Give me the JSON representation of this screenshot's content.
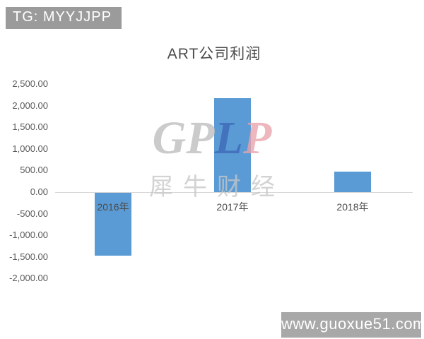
{
  "overlays": {
    "top_left_badge": "TG: MYYJJPP",
    "bottom_right_badge": "www.guoxue51.com"
  },
  "watermark": {
    "logo_letters": [
      {
        "char": "G",
        "color": "#bdbdbd"
      },
      {
        "char": "P",
        "color": "#bdbdbd"
      },
      {
        "char": "L",
        "color": "#3e68b8"
      },
      {
        "char": "P",
        "color": "#e9a3ab"
      }
    ],
    "subtitle": "犀牛财经"
  },
  "chart_data": {
    "type": "bar",
    "title": "ART公司利润",
    "categories": [
      "2016年",
      "2017年",
      "2018年"
    ],
    "values": [
      -1450,
      2180,
      470
    ],
    "xlabel": "",
    "ylabel": "",
    "ylim": [
      -2000,
      2500
    ],
    "ytick_step": 500,
    "ytick_labels": [
      "2,500.00",
      "2,000.00",
      "1,500.00",
      "1,000.00",
      "500.00",
      "0.00",
      "-500.00",
      "-1,000.00",
      "-1,500.00",
      "-2,000.00"
    ],
    "bar_color": "#5b9bd5",
    "grid": false,
    "legend": null
  },
  "colors": {
    "background": "#ffffff",
    "bar": "#5b9bd5",
    "axis_line": "#d6d6d6",
    "tick_text": "#595959",
    "title_text": "#4d4d4d",
    "badge_bg": "#9b9b9b"
  }
}
